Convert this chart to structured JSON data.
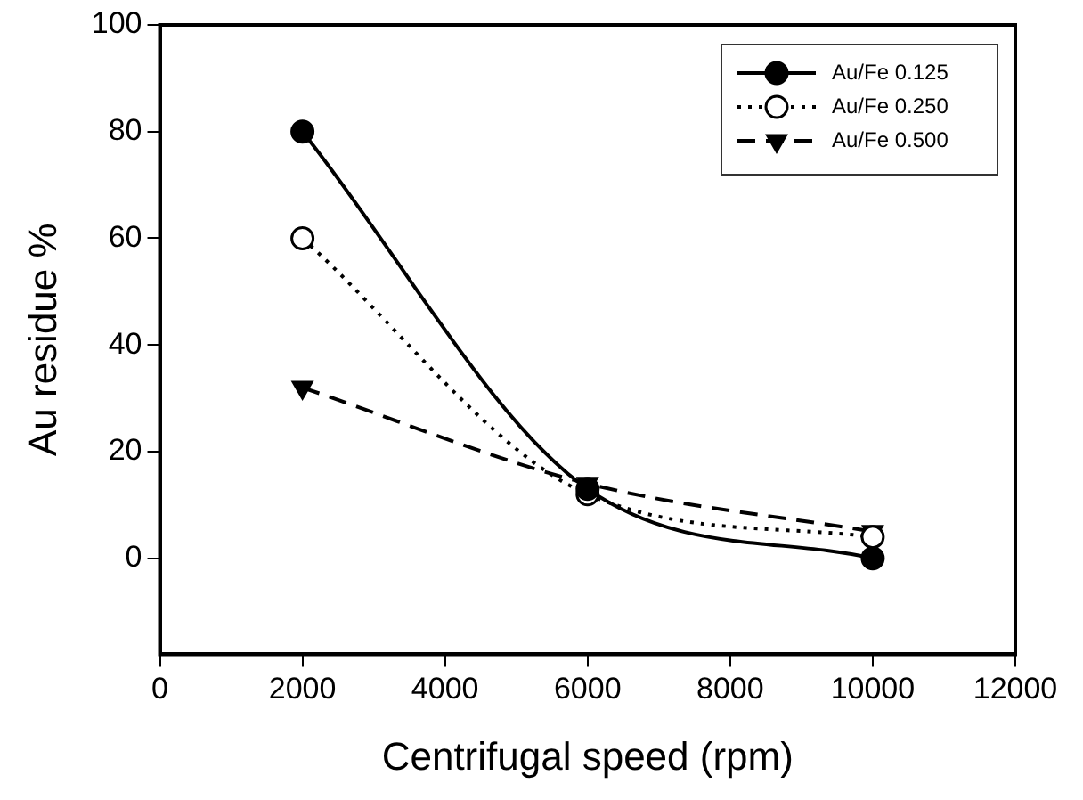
{
  "chart_data": {
    "type": "line",
    "xlabel": "Centrifugal speed (rpm)",
    "ylabel": "Au residue %",
    "x": [
      2000,
      6000,
      10000
    ],
    "xlim": [
      0,
      12000
    ],
    "xticks": [
      0,
      2000,
      4000,
      6000,
      8000,
      10000,
      12000
    ],
    "ylim": [
      -18,
      100
    ],
    "yticks": [
      0,
      20,
      40,
      60,
      80,
      100
    ],
    "grid": false,
    "legend": "top right",
    "series": [
      {
        "name": "Au/Fe 0.125",
        "color": "#000000",
        "values": [
          80,
          13,
          0
        ],
        "marker": "circle",
        "line_style": "solid"
      },
      {
        "name": "Au/Fe 0.250",
        "color": "#000000",
        "values": [
          60,
          12,
          4
        ],
        "marker": "circle",
        "line_style": "dotted"
      },
      {
        "name": "Au/Fe 0.500",
        "color": "#000000",
        "values": [
          32,
          14,
          5
        ],
        "marker": "triangle",
        "line_style": "dashed"
      }
    ]
  }
}
